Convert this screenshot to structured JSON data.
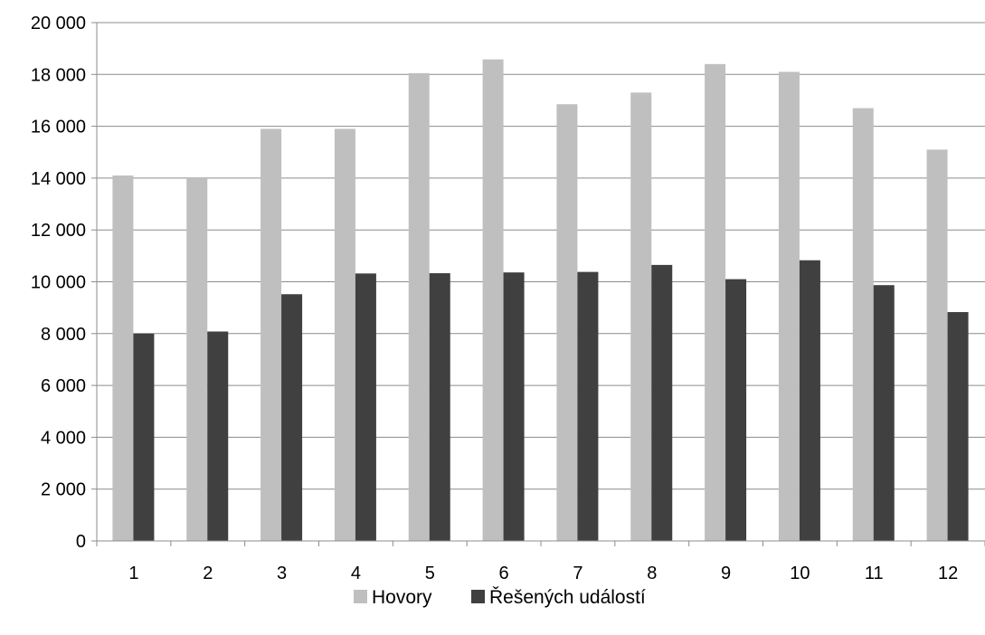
{
  "chart_data": {
    "type": "bar",
    "title": "",
    "xlabel": "",
    "ylabel": "",
    "categories": [
      "1",
      "2",
      "3",
      "4",
      "5",
      "6",
      "7",
      "8",
      "9",
      "10",
      "11",
      "12"
    ],
    "series": [
      {
        "name": "Hovory",
        "color": "#bfbfbf",
        "values": [
          14100,
          14000,
          15900,
          15900,
          18050,
          18580,
          16850,
          17300,
          18400,
          18100,
          16700,
          15100
        ]
      },
      {
        "name": "Řešených událostí",
        "color": "#404040",
        "values": [
          8000,
          8080,
          9520,
          10320,
          10330,
          10360,
          10380,
          10650,
          10100,
          10830,
          9870,
          8830
        ]
      }
    ],
    "ylim": [
      0,
      20000
    ],
    "yticks": [
      0,
      2000,
      4000,
      6000,
      8000,
      10000,
      12000,
      14000,
      16000,
      18000,
      20000
    ],
    "ytick_labels": [
      "0",
      "2 000",
      "4 000",
      "6 000",
      "8 000",
      "10 000",
      "12 000",
      "14 000",
      "16 000",
      "18 000",
      "20 000"
    ],
    "grid": true,
    "legend_position": "bottom"
  }
}
